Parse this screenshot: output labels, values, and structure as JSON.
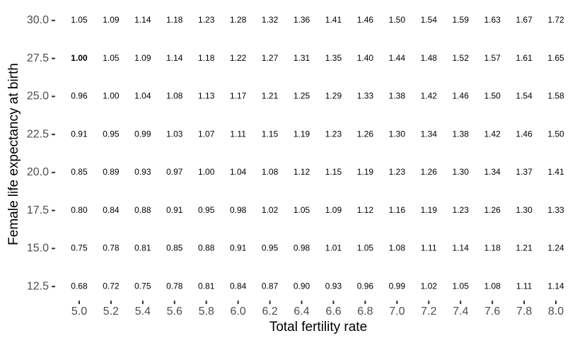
{
  "chart_data": {
    "type": "text-grid",
    "x_label": "Total fertility rate",
    "y_label": "Female life expectancy at birth",
    "x": [
      5.0,
      5.2,
      5.4,
      5.6,
      5.8,
      6.0,
      6.2,
      6.4,
      6.6,
      6.8,
      7.0,
      7.2,
      7.4,
      7.6,
      7.8,
      8.0
    ],
    "y": [
      30.0,
      27.5,
      25.0,
      22.5,
      20.0,
      17.5,
      15.0,
      12.5
    ],
    "values": [
      [
        1.05,
        1.09,
        1.14,
        1.18,
        1.23,
        1.28,
        1.32,
        1.36,
        1.41,
        1.46,
        1.5,
        1.54,
        1.59,
        1.63,
        1.67,
        1.72
      ],
      [
        1.0,
        1.05,
        1.09,
        1.14,
        1.18,
        1.22,
        1.27,
        1.31,
        1.35,
        1.4,
        1.44,
        1.48,
        1.52,
        1.57,
        1.61,
        1.65
      ],
      [
        0.96,
        1.0,
        1.04,
        1.08,
        1.13,
        1.17,
        1.21,
        1.25,
        1.29,
        1.33,
        1.38,
        1.42,
        1.46,
        1.5,
        1.54,
        1.58
      ],
      [
        0.91,
        0.95,
        0.99,
        1.03,
        1.07,
        1.11,
        1.15,
        1.19,
        1.23,
        1.26,
        1.3,
        1.34,
        1.38,
        1.42,
        1.46,
        1.5
      ],
      [
        0.85,
        0.89,
        0.93,
        0.97,
        1.0,
        1.04,
        1.08,
        1.12,
        1.15,
        1.19,
        1.23,
        1.26,
        1.3,
        1.34,
        1.37,
        1.41
      ],
      [
        0.8,
        0.84,
        0.88,
        0.91,
        0.95,
        0.98,
        1.02,
        1.05,
        1.09,
        1.12,
        1.16,
        1.19,
        1.23,
        1.26,
        1.3,
        1.33
      ],
      [
        0.75,
        0.78,
        0.81,
        0.85,
        0.88,
        0.91,
        0.95,
        0.98,
        1.01,
        1.05,
        1.08,
        1.11,
        1.14,
        1.18,
        1.21,
        1.24
      ],
      [
        0.68,
        0.72,
        0.75,
        0.78,
        0.81,
        0.84,
        0.87,
        0.9,
        0.93,
        0.96,
        0.99,
        1.02,
        1.05,
        1.08,
        1.11,
        1.14
      ]
    ],
    "value_labels": [
      [
        "1.05",
        "1.09",
        "1.14",
        "1.18",
        "1.23",
        "1.28",
        "1.32",
        "1.36",
        "1.41",
        "1.46",
        "1.50",
        "1.54",
        "1.59",
        "1.63",
        "1.67",
        "1.72"
      ],
      [
        "1.00",
        "1.05",
        "1.09",
        "1.14",
        "1.18",
        "1.22",
        "1.27",
        "1.31",
        "1.35",
        "1.40",
        "1.44",
        "1.48",
        "1.52",
        "1.57",
        "1.61",
        "1.65"
      ],
      [
        "0.96",
        "1.00",
        "1.04",
        "1.08",
        "1.13",
        "1.17",
        "1.21",
        "1.25",
        "1.29",
        "1.33",
        "1.38",
        "1.42",
        "1.46",
        "1.50",
        "1.54",
        "1.58"
      ],
      [
        "0.91",
        "0.95",
        "0.99",
        "1.03",
        "1.07",
        "1.11",
        "1.15",
        "1.19",
        "1.23",
        "1.26",
        "1.30",
        "1.34",
        "1.38",
        "1.42",
        "1.46",
        "1.50"
      ],
      [
        "0.85",
        "0.89",
        "0.93",
        "0.97",
        "1.00",
        "1.04",
        "1.08",
        "1.12",
        "1.15",
        "1.19",
        "1.23",
        "1.26",
        "1.30",
        "1.34",
        "1.37",
        "1.41"
      ],
      [
        "0.80",
        "0.84",
        "0.88",
        "0.91",
        "0.95",
        "0.98",
        "1.02",
        "1.05",
        "1.09",
        "1.12",
        "1.16",
        "1.19",
        "1.23",
        "1.26",
        "1.30",
        "1.33"
      ],
      [
        "0.75",
        "0.78",
        "0.81",
        "0.85",
        "0.88",
        "0.91",
        "0.95",
        "0.98",
        "1.01",
        "1.05",
        "1.08",
        "1.11",
        "1.14",
        "1.18",
        "1.21",
        "1.24"
      ],
      [
        "0.68",
        "0.72",
        "0.75",
        "0.78",
        "0.81",
        "0.84",
        "0.87",
        "0.90",
        "0.93",
        "0.96",
        "0.99",
        "1.02",
        "1.05",
        "1.08",
        "1.11",
        "1.14"
      ]
    ],
    "bold_cell": {
      "row": 1,
      "col": 0
    },
    "xlim": [
      4.9,
      8.1
    ],
    "ylim": [
      11.25,
      31.25
    ],
    "xticks": [
      {
        "value": 5.0,
        "label": "5.0"
      },
      {
        "value": 5.2,
        "label": "5.2"
      },
      {
        "value": 5.4,
        "label": "5.4"
      },
      {
        "value": 5.6,
        "label": "5.6"
      },
      {
        "value": 5.8,
        "label": "5.8"
      },
      {
        "value": 6.0,
        "label": "6.0"
      },
      {
        "value": 6.2,
        "label": "6.2"
      },
      {
        "value": 6.4,
        "label": "6.4"
      },
      {
        "value": 6.6,
        "label": "6.6"
      },
      {
        "value": 6.8,
        "label": "6.8"
      },
      {
        "value": 7.0,
        "label": "7.0"
      },
      {
        "value": 7.2,
        "label": "7.2"
      },
      {
        "value": 7.4,
        "label": "7.4"
      },
      {
        "value": 7.6,
        "label": "7.6"
      },
      {
        "value": 7.8,
        "label": "7.8"
      },
      {
        "value": 8.0,
        "label": "8.0"
      }
    ],
    "yticks": [
      {
        "value": 12.5,
        "label": "12.5"
      },
      {
        "value": 15.0,
        "label": "15.0"
      },
      {
        "value": 17.5,
        "label": "17.5"
      },
      {
        "value": 20.0,
        "label": "20.0"
      },
      {
        "value": 22.5,
        "label": "22.5"
      },
      {
        "value": 25.0,
        "label": "25.0"
      },
      {
        "value": 27.5,
        "label": "27.5"
      },
      {
        "value": 30.0,
        "label": "30.0"
      }
    ]
  }
}
